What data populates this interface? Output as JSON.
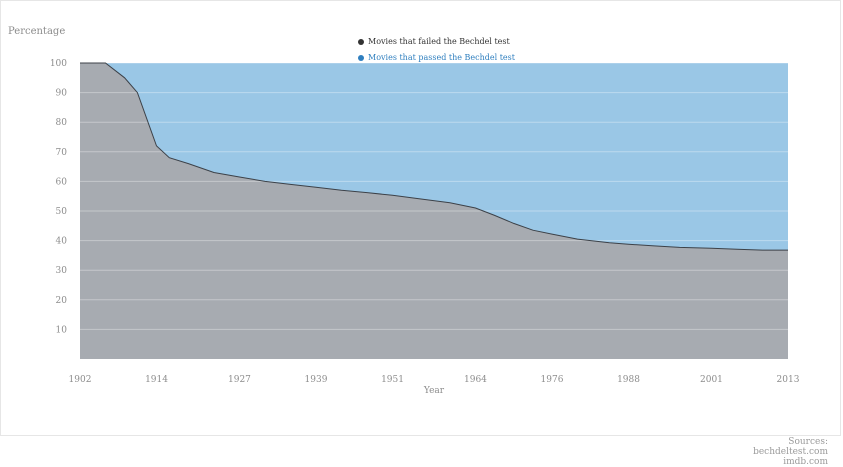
{
  "chart_data": {
    "type": "area",
    "stacked": true,
    "ylabel": "Percentage",
    "xlabel": "Year",
    "x_ticks": [
      "1902",
      "1914",
      "1927",
      "1939",
      "1951",
      "1964",
      "1976",
      "1988",
      "2001",
      "2013"
    ],
    "y_ticks": [
      10,
      20,
      30,
      40,
      50,
      60,
      70,
      80,
      90,
      100
    ],
    "xlim": [
      1902,
      2013
    ],
    "ylim": [
      0,
      100
    ],
    "grid": true,
    "legend_position": "top-center",
    "series": [
      {
        "name": "Movies that failed the Bechdel test",
        "color": "#a7abb1",
        "line_color": "#3c4148",
        "x": [
          1902,
          1906,
          1909,
          1911,
          1914,
          1916,
          1919,
          1923,
          1927,
          1931,
          1935,
          1939,
          1943,
          1947,
          1951,
          1955,
          1960,
          1964,
          1967,
          1970,
          1973,
          1976,
          1980,
          1985,
          1988,
          1992,
          1996,
          2001,
          2005,
          2009,
          2013
        ],
        "values": [
          100,
          100,
          95,
          90,
          72,
          68,
          66,
          63,
          61.5,
          60,
          59,
          58,
          57,
          56.2,
          55.3,
          54.2,
          52.8,
          51,
          48.5,
          45.8,
          43.5,
          42.2,
          40.5,
          39.3,
          38.8,
          38.2,
          37.7,
          37.4,
          37.1,
          36.8,
          36.8
        ]
      },
      {
        "name": "Movies that passed the Bechdel test",
        "color": "#9ac7e6",
        "legend_text_color": "#2f7fbf",
        "values_note_free": true
      }
    ]
  },
  "sources": {
    "heading": "Sources:",
    "lines": [
      "bechdeltest.com",
      "imdb.com"
    ]
  }
}
